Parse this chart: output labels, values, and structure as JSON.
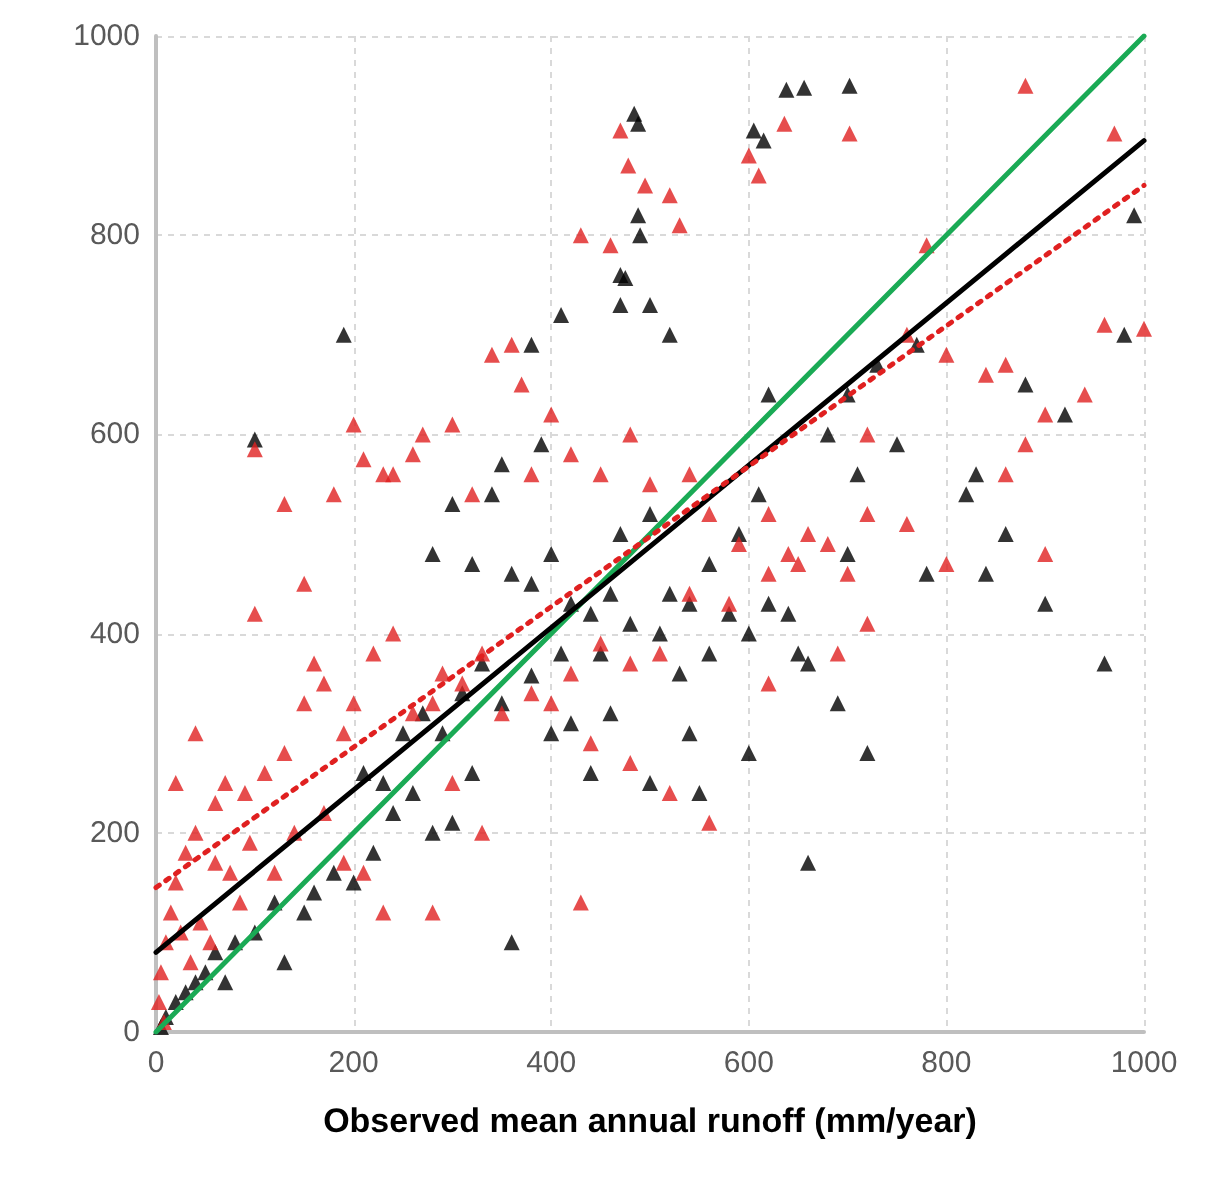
{
  "chart_data": {
    "type": "scatter",
    "xlabel": "Observed mean annual runoff (mm/year)",
    "xlim": [
      0,
      1000
    ],
    "ylim": [
      0,
      1000
    ],
    "xticks": [
      0,
      200,
      400,
      600,
      800,
      1000
    ],
    "yticks": [
      0,
      200,
      400,
      600,
      800,
      1000
    ],
    "grid": true,
    "marker": "triangle",
    "series": [
      {
        "color": "#000000",
        "x": [
          484,
          488,
          638,
          656,
          702,
          605,
          615,
          488,
          490,
          475,
          470,
          340,
          350,
          190,
          100,
          390,
          300,
          280,
          320,
          360,
          380,
          400,
          420,
          440,
          460,
          470,
          500,
          520,
          540,
          560,
          580,
          600,
          620,
          640,
          650,
          660,
          680,
          700,
          710,
          730,
          750,
          770,
          780,
          820,
          830,
          840,
          860,
          880,
          900,
          920,
          960,
          990,
          980,
          550,
          500,
          540,
          460,
          420,
          360,
          660,
          600,
          440,
          400,
          380,
          350,
          320,
          300,
          280,
          260,
          240,
          220,
          200,
          180,
          160,
          150,
          120,
          100,
          80,
          60,
          50,
          40,
          30,
          20,
          10,
          5,
          130,
          70,
          250,
          270,
          330,
          310,
          290,
          230,
          210,
          410,
          450,
          480,
          510,
          530,
          560,
          590,
          610,
          690,
          720,
          700,
          620,
          520,
          500,
          470,
          410,
          380
        ],
        "values": [
          922,
          912,
          946,
          948,
          950,
          905,
          895,
          820,
          800,
          757,
          730,
          540,
          570,
          700,
          595,
          590,
          530,
          480,
          470,
          460,
          450,
          480,
          430,
          420,
          440,
          500,
          520,
          440,
          430,
          470,
          420,
          400,
          430,
          420,
          380,
          370,
          600,
          640,
          560,
          670,
          590,
          690,
          460,
          540,
          560,
          460,
          500,
          650,
          430,
          620,
          370,
          820,
          700,
          240,
          250,
          300,
          320,
          310,
          90,
          170,
          280,
          260,
          300,
          358,
          330,
          260,
          210,
          200,
          240,
          220,
          180,
          150,
          160,
          140,
          120,
          130,
          100,
          90,
          80,
          60,
          50,
          40,
          30,
          15,
          5,
          70,
          50,
          300,
          320,
          370,
          340,
          300,
          250,
          260,
          380,
          380,
          410,
          400,
          360,
          380,
          500,
          540,
          330,
          280,
          480,
          640,
          700,
          730,
          760,
          720,
          690
        ]
      },
      {
        "color": "#e02020",
        "x": [
          470,
          478,
          636,
          702,
          880,
          970,
          1000,
          600,
          610,
          495,
          520,
          530,
          460,
          430,
          360,
          370,
          340,
          300,
          270,
          200,
          210,
          100,
          130,
          180,
          240,
          260,
          320,
          380,
          400,
          420,
          450,
          480,
          500,
          540,
          560,
          590,
          620,
          640,
          660,
          680,
          700,
          720,
          760,
          800,
          840,
          860,
          900,
          940,
          960,
          900,
          860,
          880,
          800,
          760,
          780,
          720,
          620,
          580,
          540,
          510,
          480,
          450,
          420,
          400,
          380,
          350,
          330,
          310,
          290,
          280,
          260,
          240,
          220,
          200,
          190,
          170,
          160,
          150,
          130,
          110,
          90,
          70,
          60,
          40,
          30,
          20,
          15,
          10,
          5,
          3,
          8,
          25,
          35,
          45,
          55,
          75,
          85,
          95,
          120,
          140,
          170,
          190,
          210,
          230,
          280,
          300,
          330,
          430,
          480,
          520,
          560,
          620,
          650,
          690,
          720,
          440,
          230,
          150,
          100,
          40,
          20,
          60
        ],
        "values": [
          905,
          870,
          912,
          902,
          950,
          902,
          706,
          880,
          860,
          850,
          840,
          810,
          790,
          800,
          690,
          650,
          680,
          610,
          600,
          610,
          575,
          585,
          530,
          540,
          560,
          580,
          540,
          560,
          620,
          580,
          560,
          600,
          550,
          560,
          520,
          490,
          460,
          480,
          500,
          490,
          460,
          520,
          510,
          470,
          660,
          670,
          620,
          640,
          710,
          480,
          560,
          590,
          680,
          700,
          790,
          600,
          520,
          430,
          440,
          380,
          370,
          390,
          360,
          330,
          340,
          320,
          380,
          350,
          360,
          330,
          320,
          400,
          380,
          330,
          300,
          350,
          370,
          330,
          280,
          260,
          240,
          250,
          230,
          200,
          180,
          150,
          120,
          90,
          60,
          30,
          10,
          100,
          70,
          110,
          90,
          160,
          130,
          190,
          160,
          200,
          220,
          170,
          160,
          120,
          120,
          250,
          200,
          130,
          270,
          240,
          210,
          350,
          470,
          380,
          410,
          290,
          560,
          450,
          420,
          300,
          250,
          170
        ]
      },
      {
        "type": "line",
        "color": "#1aaa55",
        "line_style": "solid",
        "marker": "none",
        "x": [
          0,
          1000
        ],
        "values": [
          0,
          1000
        ]
      },
      {
        "type": "line",
        "color": "#000000",
        "line_style": "solid",
        "marker": "none",
        "x": [
          0,
          1000
        ],
        "values": [
          80,
          895
        ]
      },
      {
        "type": "line",
        "color": "#e02020",
        "line_style": "dotted",
        "marker": "none",
        "x": [
          0,
          1000
        ],
        "values": [
          145,
          850
        ]
      }
    ]
  }
}
